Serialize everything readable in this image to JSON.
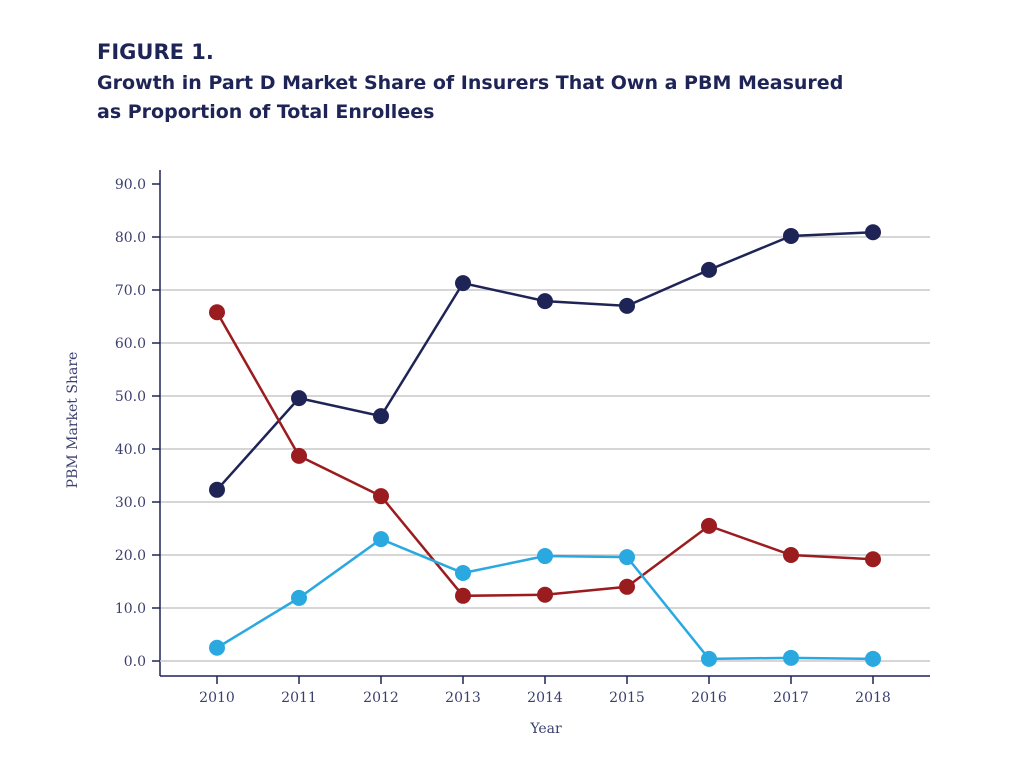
{
  "figure_label": "FIGURE 1.",
  "title_line1": "Growth in Part D Market Share of Insurers That Own a PBM Measured",
  "title_line2": "as Proportion of Total Enrollees",
  "chart_data": {
    "type": "line",
    "title": "Growth in Part D Market Share of Insurers That Own a PBM Measured as Proportion of Total Enrollees",
    "xlabel": "Year",
    "ylabel": "PBM Market Share",
    "ylim": [
      0,
      90
    ],
    "yticks": [
      "0.0",
      "10.0",
      "20.0",
      "30.0",
      "40.0",
      "50.0",
      "60.0",
      "70.0",
      "80.0",
      "90.0"
    ],
    "categories": [
      "2010",
      "2011",
      "2012",
      "2013",
      "2014",
      "2015",
      "2016",
      "2017",
      "2018"
    ],
    "grid": true,
    "series": [
      {
        "color": "#1f2456",
        "values": [
          32.3,
          49.6,
          46.2,
          71.3,
          67.9,
          67.0,
          73.8,
          80.2,
          80.9
        ]
      },
      {
        "color": "#9b1c1f",
        "values": [
          65.8,
          38.7,
          31.1,
          12.3,
          12.5,
          14.0,
          25.5,
          20.0,
          19.2
        ]
      },
      {
        "color": "#2aa9e0",
        "values": [
          2.5,
          11.9,
          23.0,
          16.6,
          19.8,
          19.6,
          0.4,
          0.6,
          0.4
        ]
      }
    ]
  }
}
